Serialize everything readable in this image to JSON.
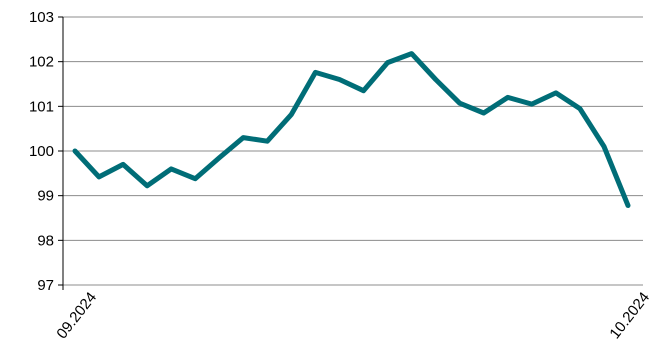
{
  "chart_data": {
    "type": "line",
    "title": "",
    "xlabel": "",
    "ylabel": "",
    "ylim": [
      97,
      103
    ],
    "yticks": [
      97,
      98,
      99,
      100,
      101,
      102,
      103
    ],
    "xtick_labels": [
      "09.2024",
      "10.2024"
    ],
    "grid": "horizontal",
    "series": [
      {
        "color": "#006d77",
        "values": [
          100.0,
          99.42,
          99.7,
          99.22,
          99.6,
          99.38,
          99.85,
          100.3,
          100.22,
          100.82,
          101.76,
          101.6,
          101.35,
          101.98,
          102.18,
          101.6,
          101.07,
          100.85,
          101.2,
          101.05,
          101.3,
          100.95,
          100.1,
          98.78
        ]
      }
    ]
  }
}
